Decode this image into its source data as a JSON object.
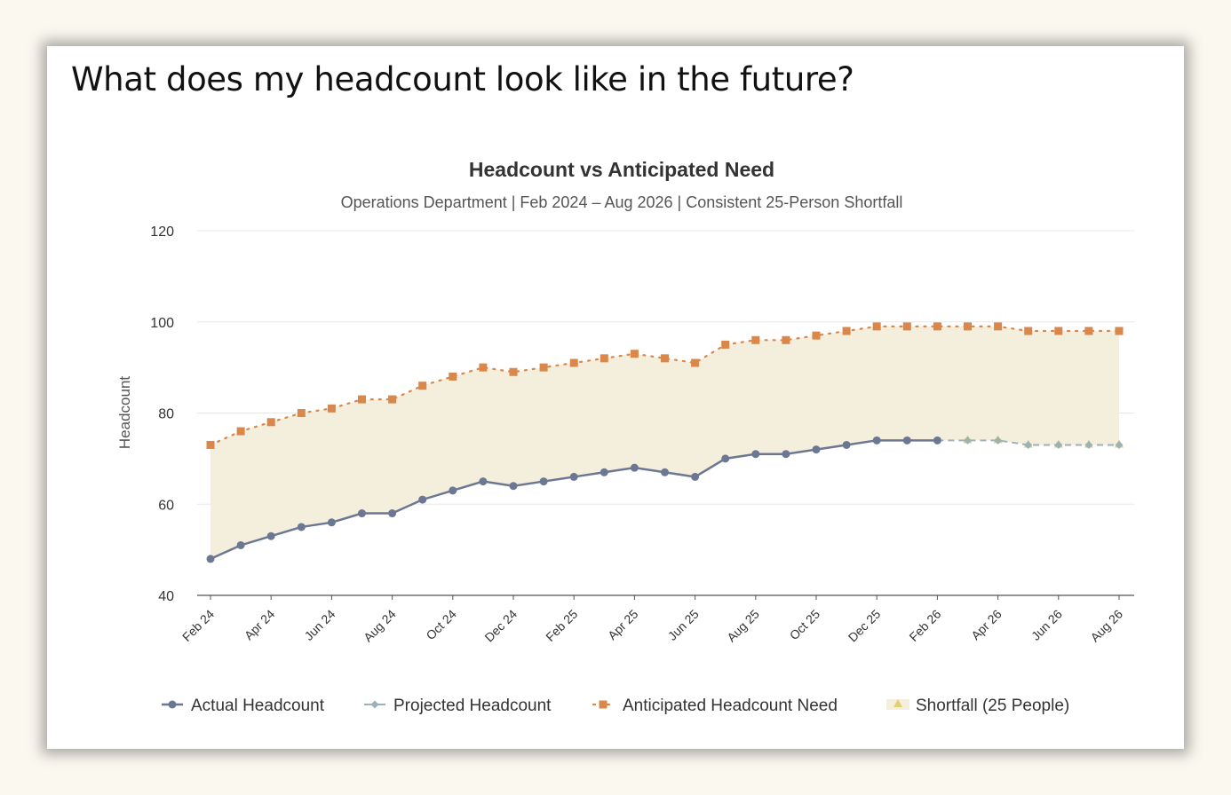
{
  "page": {
    "title": "What does my headcount look like in the future?"
  },
  "colors": {
    "actual": "#6b7793",
    "projected": "#9db1b8",
    "need": "#d9874a",
    "shortfall_fill": "#f4efdc",
    "shortfall_marker": "#e2cf6e",
    "grid": "#e8e8e8",
    "axis": "#555555"
  },
  "chart_data": {
    "type": "line",
    "title": "Headcount vs Anticipated Need",
    "subtitle": "Operations Department | Feb 2024 – Aug 2026 | Consistent 25-Person Shortfall",
    "ylabel": "Headcount",
    "xlabel": "",
    "ylim": [
      40,
      120
    ],
    "yticks": [
      40,
      60,
      80,
      100,
      120
    ],
    "grid": true,
    "legend_position": "bottom",
    "x": [
      "Feb 24",
      "Mar 24",
      "Apr 24",
      "May 24",
      "Jun 24",
      "Jul 24",
      "Aug 24",
      "Sep 24",
      "Oct 24",
      "Nov 24",
      "Dec 24",
      "Jan 25",
      "Feb 25",
      "Mar 25",
      "Apr 25",
      "May 25",
      "Jun 25",
      "Jul 25",
      "Aug 25",
      "Sep 25",
      "Oct 25",
      "Nov 25",
      "Dec 25",
      "Jan 26",
      "Feb 26",
      "Mar 26",
      "Apr 26",
      "May 26",
      "Jun 26",
      "Jul 26",
      "Aug 26"
    ],
    "xtick_labels": [
      "Feb 24",
      "Apr 24",
      "Jun 24",
      "Aug 24",
      "Oct 24",
      "Dec 24",
      "Feb 25",
      "Apr 25",
      "Jun 25",
      "Aug 25",
      "Oct 25",
      "Dec 25",
      "Feb 26",
      "Apr 26",
      "Jun 26",
      "Aug 26"
    ],
    "series": [
      {
        "name": "Actual Headcount",
        "style": "solid-circle",
        "values": [
          48,
          51,
          53,
          55,
          56,
          58,
          58,
          61,
          63,
          65,
          64,
          65,
          66,
          67,
          68,
          67,
          66,
          70,
          71,
          71,
          72,
          73,
          74,
          74,
          74,
          null,
          null,
          null,
          null,
          null,
          null
        ]
      },
      {
        "name": "Projected Headcount",
        "style": "dashed-diamond",
        "values": [
          null,
          null,
          null,
          null,
          null,
          null,
          null,
          null,
          null,
          null,
          null,
          null,
          null,
          null,
          null,
          null,
          null,
          null,
          null,
          null,
          null,
          null,
          null,
          null,
          null,
          74,
          74,
          73,
          73,
          73,
          73
        ]
      },
      {
        "name": "Anticipated Headcount Need",
        "style": "dotted-square",
        "values": [
          73,
          76,
          78,
          80,
          81,
          83,
          83,
          86,
          88,
          90,
          89,
          90,
          91,
          92,
          93,
          92,
          91,
          95,
          96,
          96,
          97,
          98,
          99,
          99,
          99,
          99,
          99,
          98,
          98,
          98,
          98
        ]
      },
      {
        "name": "Shortfall (25 People)",
        "style": "area",
        "values": [
          25,
          25,
          25,
          25,
          25,
          25,
          25,
          25,
          25,
          25,
          25,
          25,
          25,
          25,
          25,
          25,
          25,
          25,
          25,
          25,
          25,
          25,
          25,
          25,
          25,
          25,
          25,
          25,
          25,
          25,
          25
        ]
      }
    ]
  }
}
